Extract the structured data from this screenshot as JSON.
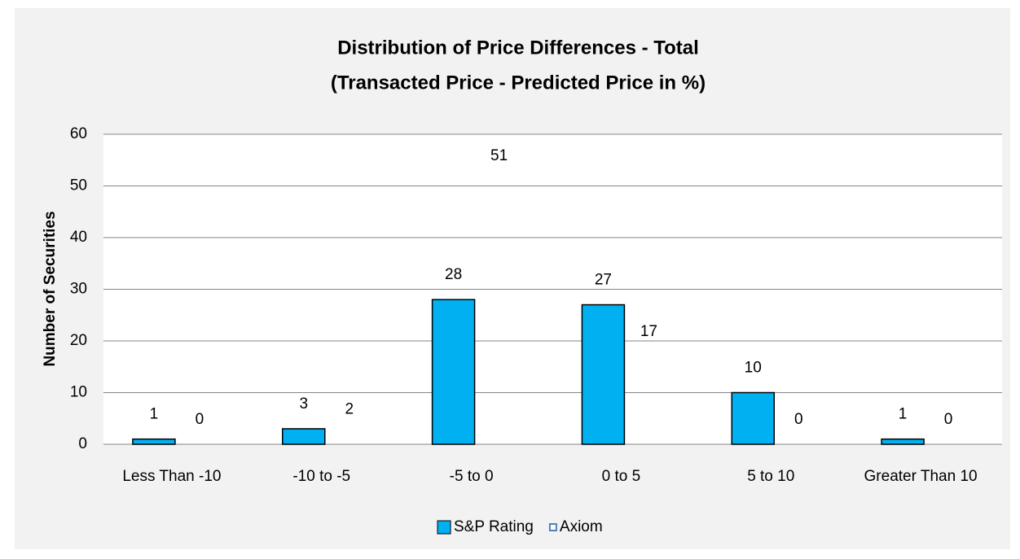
{
  "chart_data": {
    "type": "bar",
    "title": "Distribution of Price Differences - Total",
    "subtitle": "(Transacted Price - Predicted Price in %)",
    "y_label": "Number of Securities",
    "categories": [
      "Less Than -10",
      "-10 to -5",
      "-5 to 0",
      "0 to 5",
      "5 to 10",
      "Greater Than 10"
    ],
    "series": [
      {
        "name": "S&P Rating",
        "color": "#00b0f0",
        "values": [
          1,
          3,
          28,
          27,
          10,
          1
        ]
      },
      {
        "name": "Axiom",
        "color": "transparent",
        "values": [
          0,
          2,
          51,
          17,
          0,
          0
        ]
      }
    ],
    "ylim": [
      0,
      60
    ],
    "yticks": [
      0,
      10,
      20,
      30,
      40,
      50,
      60
    ],
    "grid": true,
    "legend": "bottom"
  }
}
